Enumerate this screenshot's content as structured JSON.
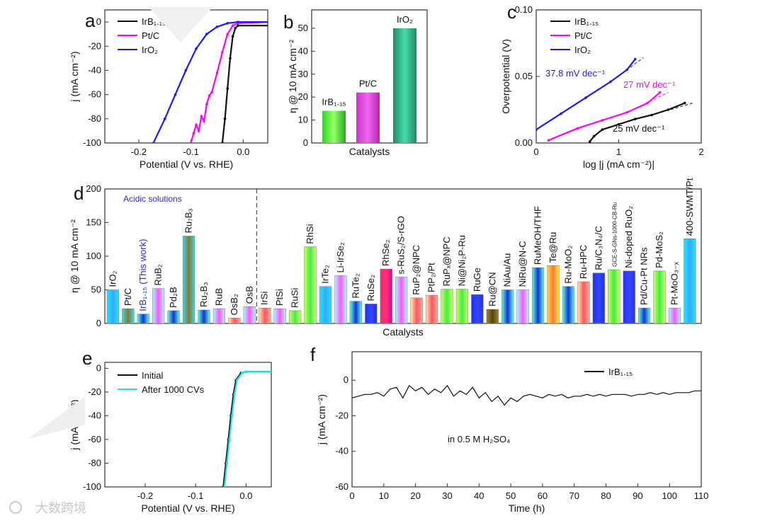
{
  "watermark": "大数跨境",
  "chart_data": [
    {
      "panel": "a",
      "type": "line",
      "xlabel": "Potential (V vs. RHE)",
      "ylabel": "j (mA cm⁻²)",
      "xlim": [
        -0.265,
        0.047
      ],
      "ylim": [
        -100,
        10
      ],
      "xticks": [
        -0.2,
        -0.1,
        0.0
      ],
      "xtick_labels": [
        "-0.2",
        "-0.1",
        "0.0"
      ],
      "yticks": [
        0,
        -20,
        -40,
        -60,
        -80,
        -100
      ],
      "ytick_labels": [
        "0",
        "-20",
        "-40",
        "-60",
        "-80",
        "-100"
      ],
      "legend": "top-left",
      "series": [
        {
          "name": "IrB₁.₁₅",
          "color": "#111111",
          "points": [
            [
              -0.04,
              -100
            ],
            [
              -0.035,
              -80
            ],
            [
              -0.03,
              -55
            ],
            [
              -0.025,
              -30
            ],
            [
              -0.02,
              -12
            ],
            [
              -0.015,
              -5
            ],
            [
              -0.01,
              -3
            ],
            [
              0.05,
              -3
            ]
          ]
        },
        {
          "name": "Pt/C",
          "color": "#ff00ff",
          "points": [
            [
              -0.1,
              -100
            ],
            [
              -0.095,
              -92
            ],
            [
              -0.09,
              -85
            ],
            [
              -0.085,
              -90
            ],
            [
              -0.08,
              -78
            ],
            [
              -0.075,
              -82
            ],
            [
              -0.07,
              -68
            ],
            [
              -0.065,
              -61
            ],
            [
              -0.06,
              -58
            ],
            [
              -0.05,
              -42
            ],
            [
              -0.04,
              -25
            ],
            [
              -0.03,
              -10
            ],
            [
              -0.02,
              -3
            ],
            [
              -0.01,
              -1
            ],
            [
              0.05,
              0
            ]
          ]
        },
        {
          "name": "IrO₂",
          "color": "#1a1aff",
          "points": [
            [
              -0.172,
              -100
            ],
            [
              -0.15,
              -80
            ],
            [
              -0.13,
              -60
            ],
            [
              -0.11,
              -40
            ],
            [
              -0.09,
              -22
            ],
            [
              -0.07,
              -10
            ],
            [
              -0.05,
              -4
            ],
            [
              -0.03,
              -1
            ],
            [
              -0.01,
              0
            ],
            [
              0.05,
              0
            ]
          ]
        }
      ]
    },
    {
      "panel": "b",
      "type": "bar",
      "xlabel": "Catalysts",
      "ylabel": "η @ 10 mA cm⁻²",
      "ylim": [
        0,
        58
      ],
      "yticks": [
        0,
        10,
        20,
        30,
        40,
        50
      ],
      "ytick_labels": [
        "0",
        "10",
        "20",
        "30",
        "40",
        "50"
      ],
      "categories": [
        "IrB₁.₁₅",
        "Pt/C",
        "IrO₂"
      ],
      "values": [
        14,
        22,
        50
      ],
      "colors": [
        "#2fd14a",
        "#d23ad2",
        "#2fae8a"
      ]
    },
    {
      "panel": "c",
      "type": "line",
      "xlabel": "log |j (mA cm⁻²)|",
      "ylabel": "Overpotential (V)",
      "xlim": [
        0,
        2
      ],
      "ylim": [
        0,
        0.1
      ],
      "xticks": [
        0,
        1,
        2
      ],
      "xtick_labels": [
        "0",
        "1",
        "2"
      ],
      "yticks": [
        0,
        0.05,
        0.1
      ],
      "ytick_labels": [
        "0.00",
        "0.05",
        "0.10"
      ],
      "legend": "top-left",
      "series": [
        {
          "name": "IrB₁.₁₅",
          "color": "#111111",
          "tafel": "25 mV dec⁻¹",
          "points": [
            [
              0.65,
              0.001
            ],
            [
              0.7,
              0.005
            ],
            [
              0.8,
              0.01
            ],
            [
              1.0,
              0.014
            ],
            [
              1.2,
              0.018
            ],
            [
              1.4,
              0.021
            ],
            [
              1.6,
              0.025
            ],
            [
              1.8,
              0.03
            ]
          ]
        },
        {
          "name": "Pt/C",
          "color": "#ff00ff",
          "tafel": "27 mV dec⁻¹",
          "points": [
            [
              0.15,
              0.002
            ],
            [
              0.5,
              0.011
            ],
            [
              0.8,
              0.017
            ],
            [
              1.1,
              0.023
            ],
            [
              1.35,
              0.03
            ],
            [
              1.5,
              0.038
            ]
          ]
        },
        {
          "name": "IrO₂",
          "color": "#1a1aff",
          "tafel": "37.8 mV dec⁻¹",
          "points": [
            [
              0,
              0.01
            ],
            [
              0.3,
              0.022
            ],
            [
              0.6,
              0.034
            ],
            [
              0.9,
              0.046
            ],
            [
              1.1,
              0.055
            ],
            [
              1.2,
              0.063
            ]
          ]
        }
      ]
    },
    {
      "panel": "d",
      "type": "bar",
      "xlabel": "Catalysts",
      "ylabel": "η @ 10 mA cm⁻²",
      "annotation": "Acidic solutions",
      "ylim": [
        0,
        200
      ],
      "yticks": [
        0,
        50,
        100,
        150,
        200
      ],
      "ytick_labels": [
        "0",
        "50",
        "100",
        "150",
        "200"
      ],
      "categories": [
        "IrO₂",
        "Pt/C",
        "IrB₁.₁₅ (This work)",
        "RuB₂",
        "Pd₂B",
        "Ru₇B₃",
        "Ru₂B₃",
        "RuB",
        "OsB₂",
        "OsB",
        "IrSi",
        "PtSi",
        "RuSi",
        "RhSi",
        "IrTe₂",
        "Li-IrSe₂",
        "RuTe₂",
        "RuSe₂",
        "RhSe₂",
        "s-RuS₂/S-rGO",
        "RuP₂@NPC",
        "PtP₂/Pt",
        "RuPₓ@NPC",
        "Ni@Ni₂P-Ru",
        "RuGe",
        "Ru@CN",
        "NiAu/Au",
        "NiRu@N-C",
        "RuMeOH/THF",
        "Te@Ru",
        "Ru-MoO₂",
        "Ru-HPC",
        "Ru/C₃N₄/C",
        "GCE-S-GNs-1000-CB-Ru",
        "Ni-doped RuO₂",
        "Pd/Cu-Pt NRs",
        "Pd-MoS₂",
        "Pt-MoO₃₋ₓ",
        "400-SWMT/Pt"
      ],
      "values": [
        50,
        22,
        14,
        52,
        19,
        130,
        20,
        22,
        8,
        25,
        23,
        22,
        19,
        114,
        55,
        71,
        33,
        29,
        81,
        69,
        38,
        42,
        51,
        51,
        43,
        21,
        50,
        50,
        83,
        86,
        55,
        62,
        75,
        80,
        78,
        23,
        78,
        23,
        126
      ],
      "highlight_color": "#2a2ad8"
    },
    {
      "panel": "e",
      "type": "line",
      "xlabel": "Potential (V vs. RHE)",
      "ylabel": "j (mA cm⁻²)",
      "xlim": [
        -0.28,
        0.05
      ],
      "ylim": [
        -100,
        5
      ],
      "xticks": [
        -0.2,
        -0.1,
        0.0
      ],
      "xtick_labels": [
        "-0.2",
        "-0.1",
        "0.0"
      ],
      "yticks": [
        0,
        -20,
        -40,
        -60,
        -80,
        -100
      ],
      "ytick_labels": [
        "0",
        "-20",
        "-40",
        "-60",
        "-80",
        "-100"
      ],
      "legend": "top-left",
      "series": [
        {
          "name": "Initial",
          "color": "#111111",
          "points": [
            [
              -0.045,
              -100
            ],
            [
              -0.04,
              -80
            ],
            [
              -0.035,
              -60
            ],
            [
              -0.03,
              -40
            ],
            [
              -0.025,
              -22
            ],
            [
              -0.02,
              -10
            ],
            [
              -0.01,
              -4
            ],
            [
              0.0,
              -3
            ],
            [
              0.05,
              -3
            ]
          ]
        },
        {
          "name": "After 1000 CVs",
          "color": "#22e0e0",
          "points": [
            [
              -0.043,
              -100
            ],
            [
              -0.038,
              -80
            ],
            [
              -0.033,
              -60
            ],
            [
              -0.028,
              -40
            ],
            [
              -0.023,
              -22
            ],
            [
              -0.018,
              -10
            ],
            [
              -0.008,
              -4
            ],
            [
              0.0,
              -3
            ],
            [
              0.05,
              -3
            ]
          ]
        }
      ]
    },
    {
      "panel": "f",
      "type": "line",
      "xlabel": "Time (h)",
      "ylabel": "j (mA cm⁻²)",
      "annotation": "in 0.5 M H₂SO₄",
      "xlim": [
        0,
        110
      ],
      "ylim": [
        -60,
        16
      ],
      "xticks": [
        0,
        10,
        20,
        30,
        40,
        50,
        60,
        70,
        80,
        90,
        100,
        110
      ],
      "xtick_labels": [
        "0",
        "10",
        "20",
        "30",
        "40",
        "50",
        "60",
        "70",
        "80",
        "90",
        "100",
        "110"
      ],
      "yticks": [
        0,
        -20,
        -40,
        -60
      ],
      "ytick_labels": [
        "0",
        "-20",
        "-40",
        "-60"
      ],
      "legend": "top-right",
      "series": [
        {
          "name": "IrB₁.₁₅",
          "color": "#111111",
          "x_step": 2,
          "values": [
            -10,
            -9,
            -8,
            -8,
            -7,
            -9,
            -5,
            -4,
            -10,
            -3,
            -6,
            -4,
            -8,
            -5,
            -7,
            -3,
            -9,
            -6,
            -8,
            -4,
            -10,
            -7,
            -12,
            -9,
            -14,
            -10,
            -12,
            -9,
            -8,
            -9,
            -10,
            -8,
            -9,
            -8,
            -10,
            -9,
            -9,
            -8,
            -9,
            -8,
            -9,
            -8,
            -8,
            -8,
            -9,
            -8,
            -8,
            -7,
            -8,
            -7,
            -8,
            -7,
            -7,
            -7,
            -6,
            -6
          ]
        }
      ]
    }
  ]
}
